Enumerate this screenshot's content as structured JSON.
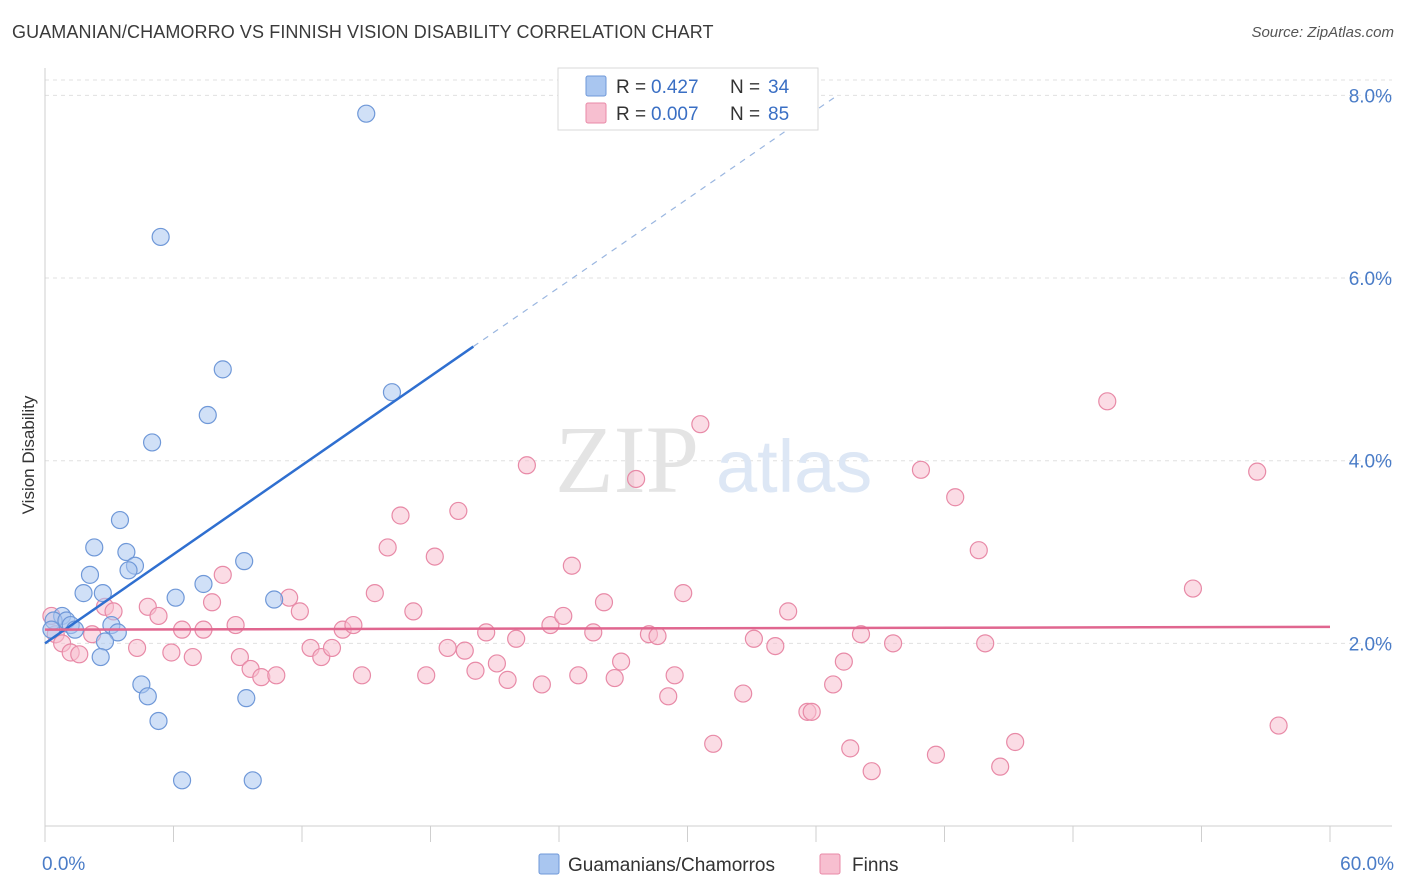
{
  "title": "GUAMANIAN/CHAMORRO VS FINNISH VISION DISABILITY CORRELATION CHART",
  "source": "Source: ZipAtlas.com",
  "watermark": {
    "zip": "ZIP",
    "atlas": "atlas"
  },
  "legend_top": [
    {
      "r_label": "R =",
      "r_value": "0.427",
      "n_label": "N =",
      "n_value": "34",
      "color": "#a9c6f0",
      "stroke": "#6f98d8"
    },
    {
      "r_label": "R =",
      "r_value": "0.007",
      "n_label": "N =",
      "n_value": "85",
      "color": "#f7bfd0",
      "stroke": "#e88aa7"
    }
  ],
  "legend_bottom": [
    {
      "label": "Guamanians/Chamorros",
      "color": "#a9c6f0",
      "stroke": "#6f98d8"
    },
    {
      "label": "Finns",
      "color": "#f7bfd0",
      "stroke": "#e88aa7"
    }
  ],
  "chart_data": {
    "type": "scatter",
    "title": "GUAMANIAN/CHAMORRO VS FINNISH VISION DISABILITY CORRELATION CHART",
    "xlabel": "",
    "ylabel": "Vision Disability",
    "xlim": [
      0,
      60
    ],
    "ylim": [
      0,
      8.3
    ],
    "x_tick_labels": [
      "0.0%",
      "60.0%"
    ],
    "y_ticks": [
      2.0,
      4.0,
      6.0,
      8.0
    ],
    "y_tick_labels": [
      "2.0%",
      "4.0%",
      "6.0%",
      "8.0%"
    ],
    "grid": true,
    "legend_position": "top-center",
    "series": [
      {
        "name": "Guamanians/Chamorros",
        "color": "#6f98d8",
        "fill": "#a9c6f0",
        "trend": {
          "x": [
            0,
            20
          ],
          "y": [
            2.0,
            5.25
          ],
          "dashed_to": [
            37,
            8.0
          ]
        },
        "points": [
          [
            15.0,
            7.8
          ],
          [
            5.4,
            6.45
          ],
          [
            8.3,
            5.0
          ],
          [
            16.2,
            4.75
          ],
          [
            7.6,
            4.5
          ],
          [
            5.0,
            4.2
          ],
          [
            3.5,
            3.35
          ],
          [
            2.3,
            3.05
          ],
          [
            3.8,
            3.0
          ],
          [
            9.3,
            2.9
          ],
          [
            4.2,
            2.85
          ],
          [
            3.9,
            2.8
          ],
          [
            2.1,
            2.75
          ],
          [
            7.4,
            2.65
          ],
          [
            1.8,
            2.55
          ],
          [
            2.7,
            2.55
          ],
          [
            6.1,
            2.5
          ],
          [
            10.7,
            2.48
          ],
          [
            0.8,
            2.3
          ],
          [
            0.4,
            2.25
          ],
          [
            1.0,
            2.25
          ],
          [
            1.2,
            2.2
          ],
          [
            3.1,
            2.2
          ],
          [
            0.3,
            2.15
          ],
          [
            1.4,
            2.15
          ],
          [
            3.4,
            2.12
          ],
          [
            2.8,
            2.02
          ],
          [
            2.6,
            1.85
          ],
          [
            4.5,
            1.55
          ],
          [
            4.8,
            1.42
          ],
          [
            9.4,
            1.4
          ],
          [
            5.3,
            1.15
          ],
          [
            6.4,
            0.5
          ],
          [
            9.7,
            0.5
          ]
        ]
      },
      {
        "name": "Finns",
        "color": "#e88aa7",
        "fill": "#f7bfd0",
        "trend": {
          "x": [
            0,
            60
          ],
          "y": [
            2.15,
            2.18
          ]
        },
        "points": [
          [
            0.3,
            2.3
          ],
          [
            0.5,
            2.1
          ],
          [
            0.8,
            2.0
          ],
          [
            1.2,
            1.9
          ],
          [
            1.6,
            1.88
          ],
          [
            2.2,
            2.1
          ],
          [
            2.8,
            2.4
          ],
          [
            3.2,
            2.35
          ],
          [
            4.3,
            1.95
          ],
          [
            4.8,
            2.4
          ],
          [
            5.3,
            2.3
          ],
          [
            5.9,
            1.9
          ],
          [
            6.4,
            2.15
          ],
          [
            6.9,
            1.85
          ],
          [
            7.4,
            2.15
          ],
          [
            7.8,
            2.45
          ],
          [
            8.3,
            2.75
          ],
          [
            8.9,
            2.2
          ],
          [
            9.1,
            1.85
          ],
          [
            9.6,
            1.72
          ],
          [
            10.1,
            1.63
          ],
          [
            10.8,
            1.65
          ],
          [
            11.4,
            2.5
          ],
          [
            11.9,
            2.35
          ],
          [
            12.4,
            1.95
          ],
          [
            12.9,
            1.85
          ],
          [
            13.4,
            1.95
          ],
          [
            13.9,
            2.15
          ],
          [
            14.4,
            2.2
          ],
          [
            14.8,
            1.65
          ],
          [
            15.4,
            2.55
          ],
          [
            16.0,
            3.05
          ],
          [
            16.6,
            3.4
          ],
          [
            17.2,
            2.35
          ],
          [
            17.8,
            1.65
          ],
          [
            18.2,
            2.95
          ],
          [
            18.8,
            1.95
          ],
          [
            19.3,
            3.45
          ],
          [
            19.6,
            1.92
          ],
          [
            20.1,
            1.7
          ],
          [
            20.6,
            2.12
          ],
          [
            21.1,
            1.78
          ],
          [
            21.6,
            1.6
          ],
          [
            22.0,
            2.05
          ],
          [
            22.5,
            3.95
          ],
          [
            23.2,
            1.55
          ],
          [
            23.6,
            2.2
          ],
          [
            24.2,
            2.3
          ],
          [
            24.6,
            2.85
          ],
          [
            24.9,
            1.65
          ],
          [
            25.6,
            2.12
          ],
          [
            26.1,
            2.45
          ],
          [
            26.6,
            1.62
          ],
          [
            26.9,
            1.8
          ],
          [
            27.6,
            3.8
          ],
          [
            28.2,
            2.1
          ],
          [
            28.6,
            2.08
          ],
          [
            29.1,
            1.42
          ],
          [
            29.4,
            1.65
          ],
          [
            29.8,
            2.55
          ],
          [
            30.6,
            4.4
          ],
          [
            31.2,
            0.9
          ],
          [
            32.6,
            1.45
          ],
          [
            33.1,
            2.05
          ],
          [
            34.1,
            1.97
          ],
          [
            34.7,
            2.35
          ],
          [
            35.6,
            1.25
          ],
          [
            35.8,
            1.25
          ],
          [
            36.8,
            1.55
          ],
          [
            37.3,
            1.8
          ],
          [
            37.6,
            0.85
          ],
          [
            38.1,
            2.1
          ],
          [
            38.6,
            0.6
          ],
          [
            39.6,
            2.0
          ],
          [
            40.9,
            3.9
          ],
          [
            41.6,
            0.78
          ],
          [
            42.5,
            3.6
          ],
          [
            43.6,
            3.02
          ],
          [
            43.9,
            2.0
          ],
          [
            44.6,
            0.65
          ],
          [
            45.3,
            0.92
          ],
          [
            49.6,
            4.65
          ],
          [
            53.6,
            2.6
          ],
          [
            56.6,
            3.88
          ],
          [
            57.6,
            1.1
          ]
        ]
      }
    ]
  }
}
